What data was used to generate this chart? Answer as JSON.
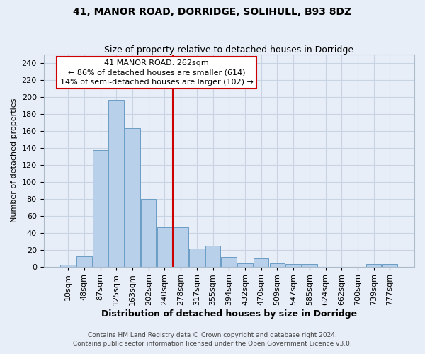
{
  "title1": "41, MANOR ROAD, DORRIDGE, SOLIHULL, B93 8DZ",
  "title2": "Size of property relative to detached houses in Dorridge",
  "xlabel": "Distribution of detached houses by size in Dorridge",
  "ylabel": "Number of detached properties",
  "bin_labels": [
    "10sqm",
    "48sqm",
    "87sqm",
    "125sqm",
    "163sqm",
    "202sqm",
    "240sqm",
    "278sqm",
    "317sqm",
    "355sqm",
    "394sqm",
    "432sqm",
    "470sqm",
    "509sqm",
    "547sqm",
    "585sqm",
    "624sqm",
    "662sqm",
    "700sqm",
    "739sqm",
    "777sqm"
  ],
  "bar_values": [
    2,
    12,
    137,
    197,
    163,
    80,
    46,
    46,
    21,
    25,
    11,
    4,
    10,
    4,
    3,
    3,
    0,
    0,
    0,
    3,
    3
  ],
  "bar_color": "#b8d0ea",
  "bar_edge_color": "#6a9ec5",
  "grid_color": "#c8d4e4",
  "background_color": "#e8eef8",
  "vline_color": "#cc0000",
  "annotation_text": "41 MANOR ROAD: 262sqm\n← 86% of detached houses are smaller (614)\n14% of semi-detached houses are larger (102) →",
  "annotation_box_color": "white",
  "annotation_box_edge": "#cc0000",
  "footer1": "Contains HM Land Registry data © Crown copyright and database right 2024.",
  "footer2": "Contains public sector information licensed under the Open Government Licence v3.0.",
  "ylim": [
    0,
    250
  ],
  "yticks": [
    0,
    20,
    40,
    60,
    80,
    100,
    120,
    140,
    160,
    180,
    200,
    220,
    240
  ],
  "title1_fontsize": 10,
  "title2_fontsize": 9,
  "ylabel_fontsize": 8,
  "xlabel_fontsize": 9,
  "tick_fontsize": 8
}
